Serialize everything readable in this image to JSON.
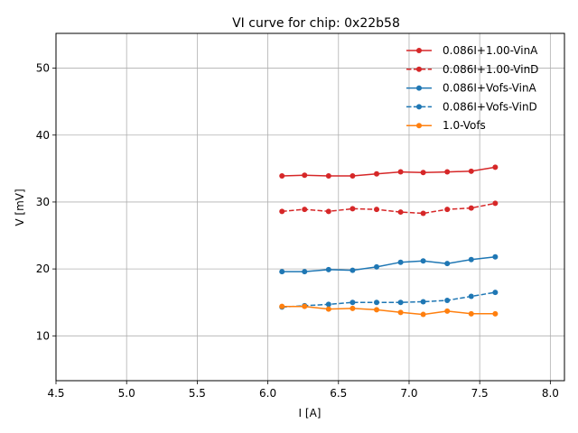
{
  "chart_data": {
    "type": "line",
    "title": "VI curve for chip: 0x22b58",
    "xlabel": "I [A]",
    "ylabel": "V [mV]",
    "xlim": [
      4.5,
      8.1
    ],
    "ylim": [
      3.3,
      55.2
    ],
    "xticks": [
      4.5,
      5.0,
      5.5,
      6.0,
      6.5,
      7.0,
      7.5,
      8.0
    ],
    "xtick_labels": [
      "4.5",
      "5.0",
      "5.5",
      "6.0",
      "6.5",
      "7.0",
      "7.5",
      "8.0"
    ],
    "yticks": [
      10,
      20,
      30,
      40,
      50
    ],
    "ytick_labels": [
      "10",
      "20",
      "30",
      "40",
      "50"
    ],
    "grid": true,
    "legend_position": "top-right",
    "x": [
      6.1,
      6.26,
      6.43,
      6.6,
      6.77,
      6.94,
      7.1,
      7.27,
      7.44,
      7.61
    ],
    "series": [
      {
        "name": "0.086I+1.00-VinA",
        "color": "#d62728",
        "dashed": false,
        "values": [
          33.9,
          34.0,
          33.9,
          33.9,
          34.2,
          34.5,
          34.4,
          34.5,
          34.6,
          35.2
        ]
      },
      {
        "name": "0.086I+1.00-VinD",
        "color": "#d62728",
        "dashed": true,
        "values": [
          28.6,
          28.9,
          28.6,
          29.0,
          28.9,
          28.5,
          28.3,
          28.9,
          29.1,
          29.8
        ]
      },
      {
        "name": "0.086I+Vofs-VinA",
        "color": "#1f77b4",
        "dashed": false,
        "values": [
          19.6,
          19.6,
          19.9,
          19.8,
          20.3,
          21.0,
          21.2,
          20.8,
          21.4,
          21.8
        ]
      },
      {
        "name": "0.086I+Vofs-VinD",
        "color": "#1f77b4",
        "dashed": true,
        "values": [
          14.3,
          14.5,
          14.7,
          15.0,
          15.0,
          15.0,
          15.1,
          15.3,
          15.9,
          16.5
        ]
      },
      {
        "name": "1.0-Vofs",
        "color": "#ff7f0e",
        "dashed": false,
        "values": [
          14.4,
          14.4,
          14.0,
          14.1,
          13.9,
          13.5,
          13.2,
          13.7,
          13.3,
          13.3
        ]
      }
    ]
  }
}
